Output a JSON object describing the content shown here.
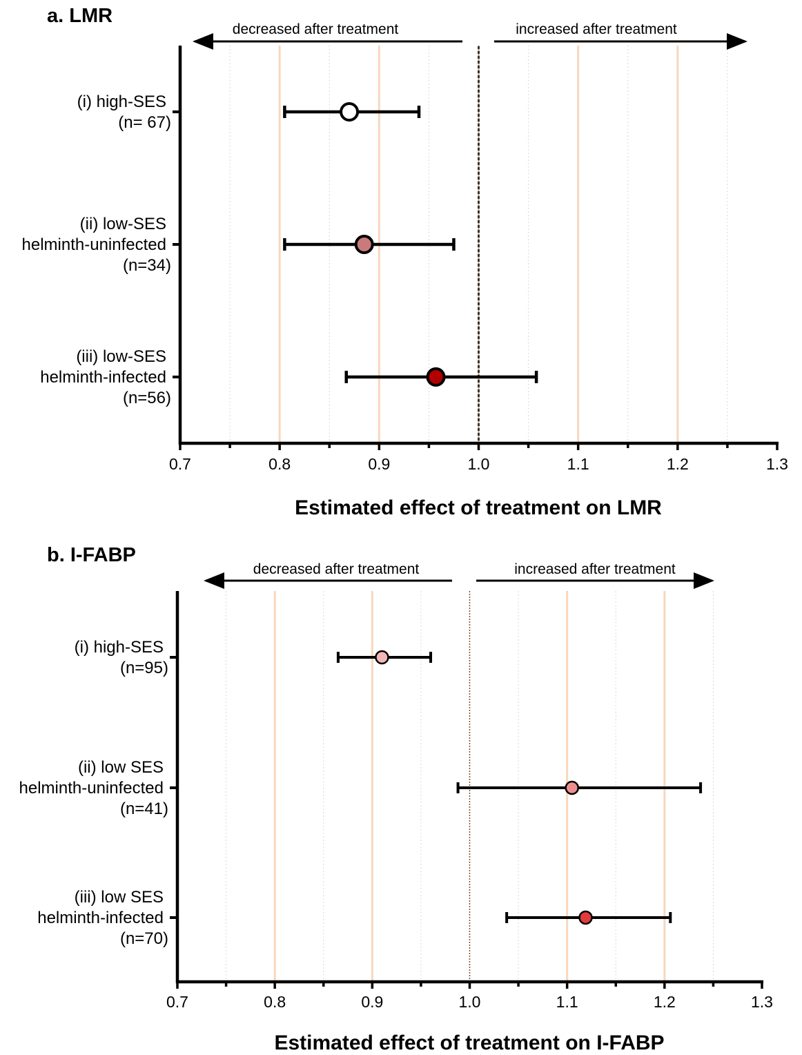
{
  "chart_data": [
    {
      "type": "forest",
      "panel_title": "a. LMR",
      "xlabel": "Estimated effect of treatment on LMR",
      "xlim": [
        0.7,
        1.3
      ],
      "xticks": [
        "0.7",
        "0.8",
        "0.9",
        "1.0",
        "1.1",
        "1.2",
        "1.3"
      ],
      "reference_line": 1.0,
      "annotations": {
        "left": "decreased after treatment",
        "right": "increased after treatment"
      },
      "grid": true,
      "rows": [
        {
          "label_lines": [
            "(i) high-SES",
            "(n= 67)"
          ],
          "estimate": 0.87,
          "ci_low": 0.805,
          "ci_high": 0.94,
          "color": "#ffffff"
        },
        {
          "label_lines": [
            "(ii) low-SES",
            "helminth-uninfected",
            "(n=34)"
          ],
          "estimate": 0.885,
          "ci_low": 0.805,
          "ci_high": 0.975,
          "color": "#c97a7a"
        },
        {
          "label_lines": [
            "(iii) low-SES",
            "helminth-infected",
            "(n=56)"
          ],
          "estimate": 0.957,
          "ci_low": 0.867,
          "ci_high": 1.058,
          "color": "#b00000"
        }
      ]
    },
    {
      "type": "forest",
      "panel_title": "b. I-FABP",
      "xlabel": "Estimated effect of treatment on I-FABP",
      "xlim": [
        0.7,
        1.3
      ],
      "xticks": [
        "0.7",
        "0.8",
        "0.9",
        "1.0",
        "1.1",
        "1.2",
        "1.3"
      ],
      "reference_line": 1.0,
      "annotations": {
        "left": "decreased after treatment",
        "right": "increased after treatment"
      },
      "grid": true,
      "rows": [
        {
          "label_lines": [
            "(i) high-SES",
            "(n=95)"
          ],
          "estimate": 0.91,
          "ci_low": 0.865,
          "ci_high": 0.96,
          "color": "#f2b8b8"
        },
        {
          "label_lines": [
            "(ii) low SES",
            "helminth-uninfected",
            "(n=41)"
          ],
          "estimate": 1.105,
          "ci_low": 0.988,
          "ci_high": 1.237,
          "color": "#ee8f8f"
        },
        {
          "label_lines": [
            "(iii) low SES",
            "helminth-infected",
            "(n=70)"
          ],
          "estimate": 1.119,
          "ci_low": 1.038,
          "ci_high": 1.206,
          "color": "#e23b3b"
        }
      ]
    }
  ]
}
